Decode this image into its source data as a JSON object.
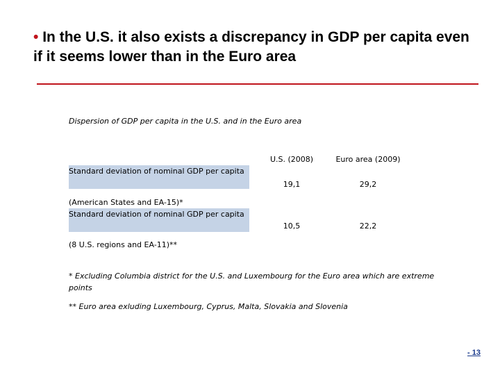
{
  "slide": {
    "bullet": "•",
    "title": "In the U.S. it also exists a discrepancy in GDP per capita even if it seems lower than in the Euro area"
  },
  "table": {
    "caption": "Dispersion of GDP per capita in the U.S. and in the Euro area",
    "columns": [
      "U.S. (2008)",
      "Euro area (2009)"
    ],
    "rows": [
      {
        "label": "Standard deviation of nominal GDP per capita",
        "note": "(American States and  EA-15)*",
        "values": [
          "19,1",
          "29,2"
        ]
      },
      {
        "label": "Standard deviation of nominal GDP per capita",
        "note": "(8 U.S. regions and EA-11)**",
        "values": [
          "10,5",
          "22,2"
        ]
      }
    ]
  },
  "footnotes": [
    "* Excluding Columbia district for the U.S. and Luxembourg for the Euro area which are extreme points",
    "** Euro area exluding Luxembourg, Cyprus, Malta, Slovakia and Slovenia"
  ],
  "page": {
    "number": "- 13"
  },
  "colors": {
    "accent": "#c0141c",
    "row_shade": "#c5d3e6",
    "page_number": "#1a3a8c"
  }
}
